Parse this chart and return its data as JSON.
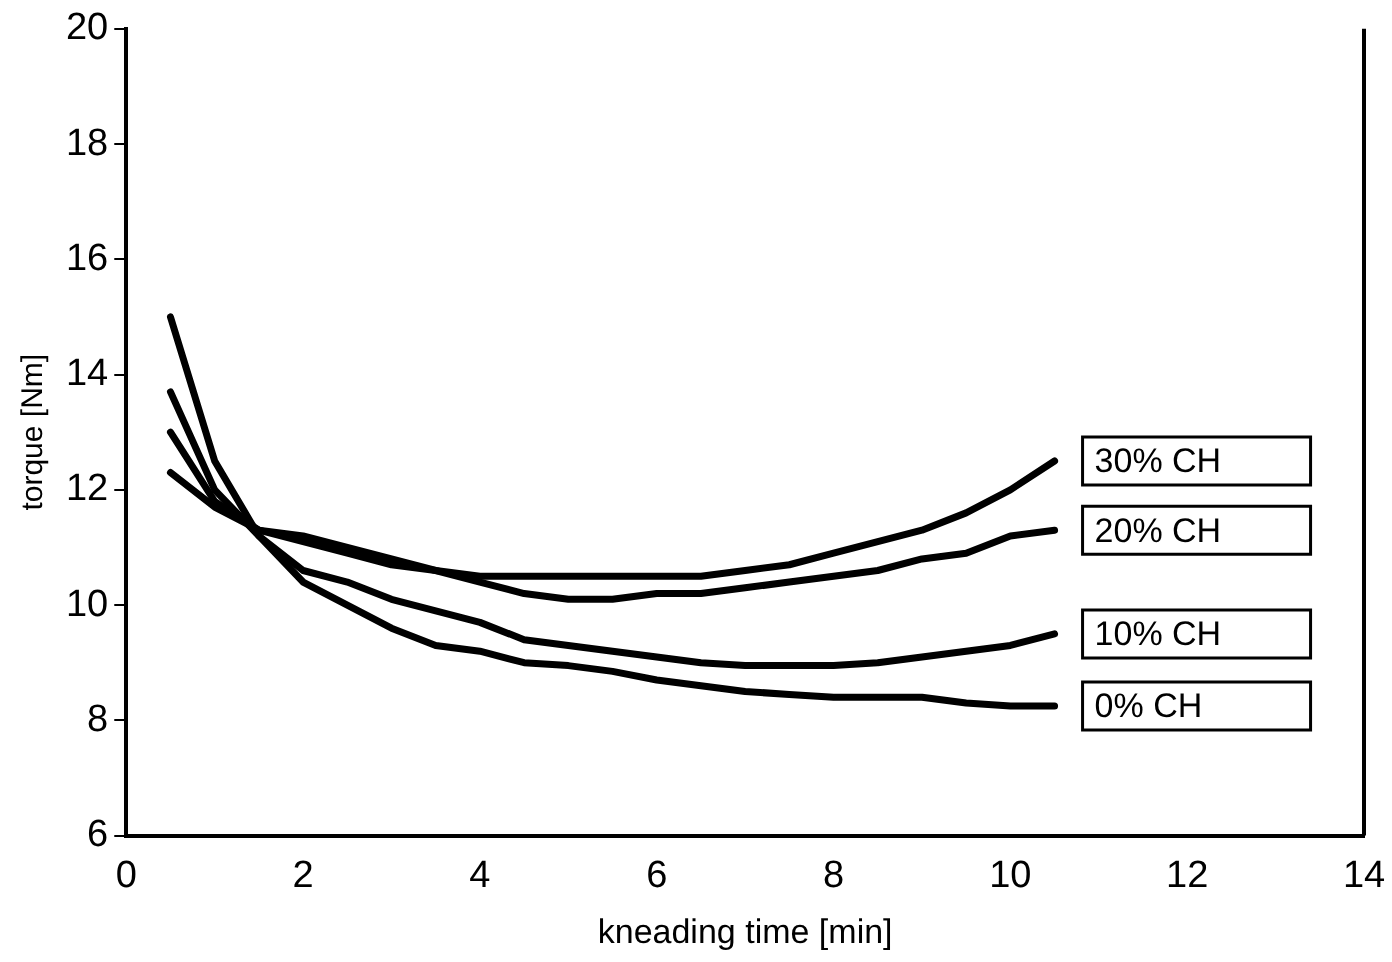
{
  "chart_data": {
    "type": "line",
    "xlabel": "kneading time [min]",
    "ylabel": "torque [Nm]",
    "x": [
      0.5,
      1,
      1.5,
      2,
      2.5,
      3,
      3.5,
      4,
      4.5,
      5,
      5.5,
      6,
      6.5,
      7,
      7.5,
      8,
      8.5,
      9,
      9.5,
      10,
      10.5
    ],
    "xlim": [
      0,
      14
    ],
    "xticks": [
      0,
      2,
      4,
      6,
      8,
      10,
      12,
      14
    ],
    "ylim": [
      6,
      20
    ],
    "yticks": [
      6,
      8,
      10,
      12,
      14,
      16,
      18,
      20
    ],
    "grid": false,
    "legend": false,
    "marker": "none",
    "line_style": "solid",
    "series": [
      {
        "name": "30% CH",
        "color": "#000000",
        "values": [
          12.3,
          11.7,
          11.3,
          11.2,
          11.0,
          10.8,
          10.6,
          10.5,
          10.5,
          10.5,
          10.5,
          10.5,
          10.5,
          10.6,
          10.7,
          10.9,
          11.1,
          11.3,
          11.6,
          12.0,
          12.5
        ]
      },
      {
        "name": "20% CH",
        "color": "#000000",
        "values": [
          13.0,
          11.8,
          11.3,
          11.1,
          10.9,
          10.7,
          10.6,
          10.4,
          10.2,
          10.1,
          10.1,
          10.2,
          10.2,
          10.3,
          10.4,
          10.5,
          10.6,
          10.8,
          10.9,
          11.2,
          11.3
        ]
      },
      {
        "name": "10% CH",
        "color": "#000000",
        "values": [
          13.7,
          12.0,
          11.2,
          10.6,
          10.4,
          10.1,
          9.9,
          9.7,
          9.4,
          9.3,
          9.2,
          9.1,
          9.0,
          8.95,
          8.95,
          8.95,
          9.0,
          9.1,
          9.2,
          9.3,
          9.5
        ]
      },
      {
        "name": "0% CH",
        "color": "#000000",
        "values": [
          15.0,
          12.5,
          11.2,
          10.4,
          10.0,
          9.6,
          9.3,
          9.2,
          9.0,
          8.95,
          8.85,
          8.7,
          8.6,
          8.5,
          8.45,
          8.4,
          8.4,
          8.4,
          8.3,
          8.25,
          8.25
        ]
      }
    ]
  }
}
